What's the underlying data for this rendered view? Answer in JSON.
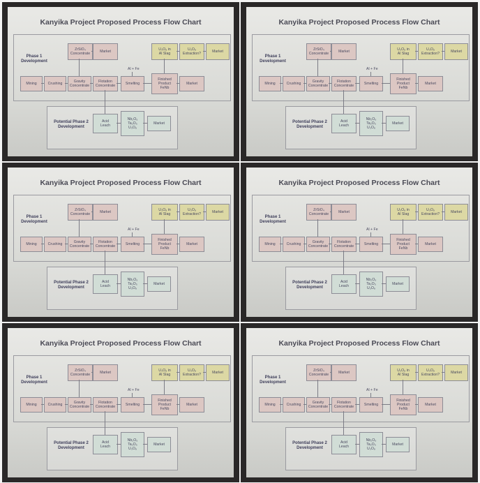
{
  "title": "Kanyika Project Proposed Process Flow Chart",
  "phase1": "Phase 1\nDevelopment",
  "phase2": "Potential Phase 2\nDevelopment",
  "nodes": {
    "zrsio4": "ZrSiO₄\nConcentrate",
    "market_top": "Market",
    "u3o8_slag": "U₃O₈ in\nAl Slag",
    "u3o8_ext": "U₃O₈\nExtraction?",
    "market_right": "Market",
    "mining": "Mining",
    "crushing": "Crushing",
    "gravity": "Gravity\nConcentrate",
    "flotation": "Flotation\nConcentrate",
    "smelting": "Smelting",
    "finished": "Finished\nProduct\nFeNb",
    "market_mid": "Market",
    "acid": "Acid\nLeach",
    "oxides": "Nb₂O₅\nTa₂O₅\nU₃O₈",
    "market_low": "Market",
    "alfe": "Al + Fe"
  },
  "colors": {
    "pink": "#dcc7c3",
    "yellow": "#dcd8a4",
    "green": "#d1ddd6"
  }
}
